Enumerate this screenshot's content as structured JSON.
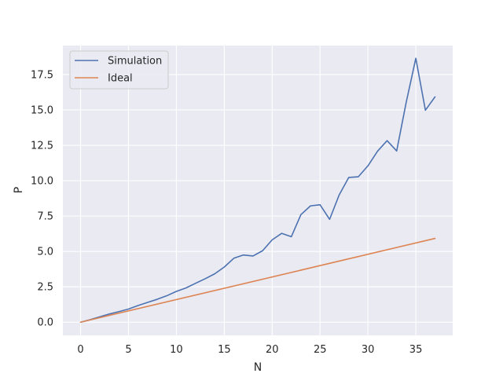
{
  "chart_data": {
    "type": "line",
    "xlabel": "N",
    "ylabel": "P",
    "xlim": [
      -1.85,
      38.85
    ],
    "ylim": [
      -0.93,
      19.55
    ],
    "xticks": [
      0,
      5,
      10,
      15,
      20,
      25,
      30,
      35
    ],
    "yticks": [
      0.0,
      2.5,
      5.0,
      7.5,
      10.0,
      12.5,
      15.0,
      17.5
    ],
    "xtick_labels": [
      "0",
      "5",
      "10",
      "15",
      "20",
      "25",
      "30",
      "35"
    ],
    "ytick_labels": [
      "0.0",
      "2.5",
      "5.0",
      "7.5",
      "10.0",
      "12.5",
      "15.0",
      "17.5"
    ],
    "grid": true,
    "background": "#eaeaf2",
    "legend_position": "top-left",
    "series": [
      {
        "name": "Simulation",
        "color": "#4c72b0",
        "x": [
          0,
          1,
          2,
          3,
          4,
          5,
          6,
          7,
          8,
          9,
          10,
          11,
          12,
          13,
          14,
          15,
          16,
          17,
          18,
          19,
          20,
          21,
          22,
          23,
          24,
          25,
          26,
          27,
          28,
          29,
          30,
          31,
          32,
          33,
          34,
          35,
          36,
          37
        ],
        "values": [
          0.0,
          0.18,
          0.38,
          0.58,
          0.75,
          0.93,
          1.18,
          1.4,
          1.62,
          1.87,
          2.18,
          2.42,
          2.75,
          3.07,
          3.42,
          3.9,
          4.52,
          4.75,
          4.68,
          5.05,
          5.82,
          6.28,
          6.04,
          7.6,
          8.22,
          8.3,
          7.27,
          9.0,
          10.23,
          10.28,
          11.05,
          12.08,
          12.83,
          12.1,
          15.55,
          18.65,
          14.98,
          15.92
        ]
      },
      {
        "name": "Ideal",
        "color": "#dd8452",
        "x": [
          0,
          37
        ],
        "values": [
          0.0,
          5.92
        ]
      }
    ]
  }
}
